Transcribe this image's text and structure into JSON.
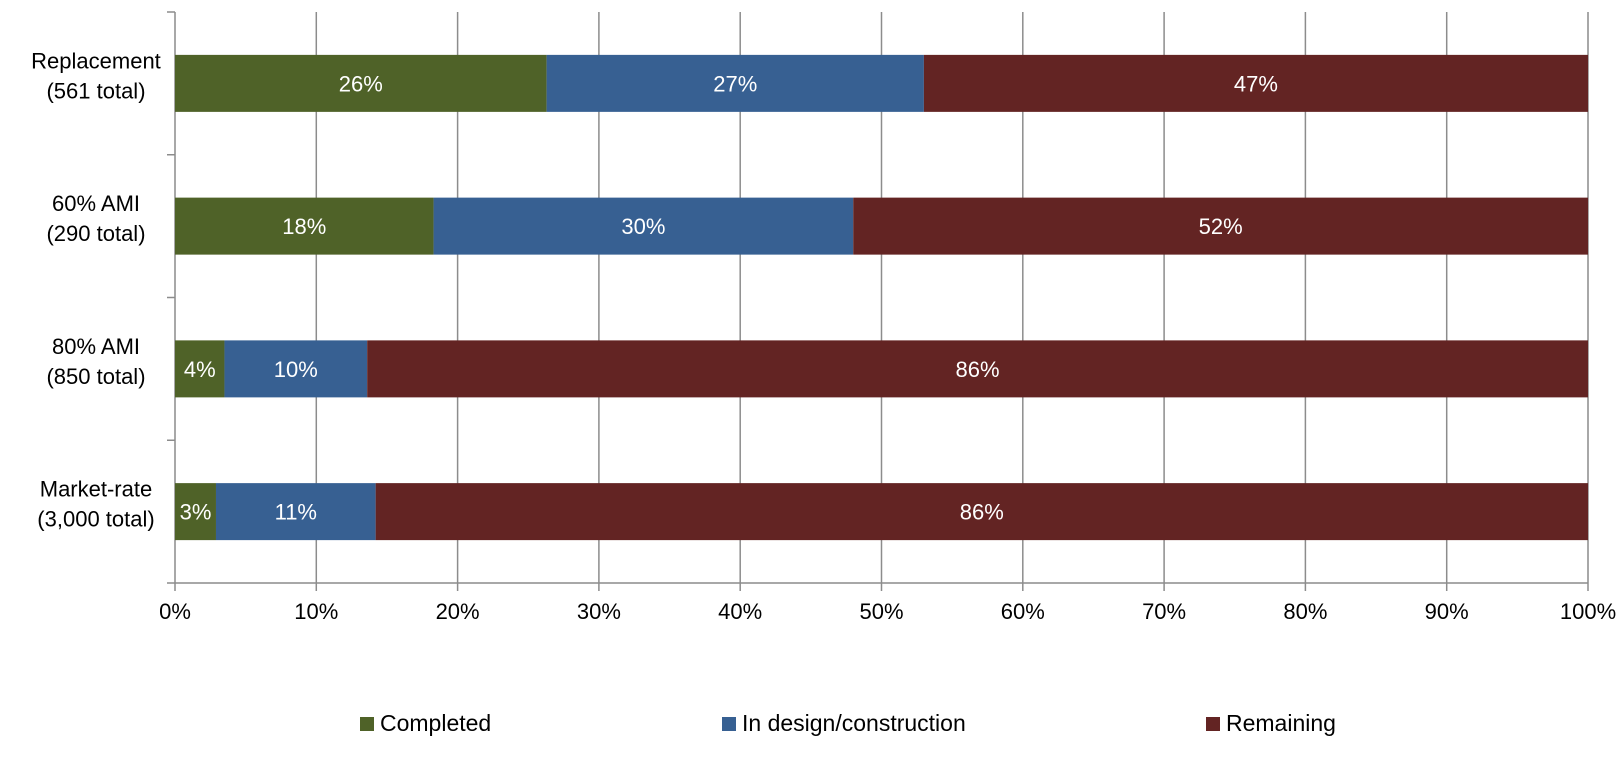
{
  "chart_data": {
    "type": "bar",
    "orientation": "horizontal",
    "stacked": true,
    "categories": [
      [
        "Replacement",
        "(561 total)"
      ],
      [
        "60% AMI",
        "(290 total)"
      ],
      [
        "80% AMI",
        "(850 total)"
      ],
      [
        "Market-rate",
        "(3,000 total)"
      ]
    ],
    "series": [
      {
        "name": "Completed",
        "color": "#4F6228",
        "values": [
          26.3,
          18.3,
          3.5,
          2.9
        ],
        "labels": [
          "26%",
          "18%",
          "4%",
          "3%"
        ]
      },
      {
        "name": "In design/construction",
        "color": "#376092",
        "values": [
          26.7,
          29.7,
          10.1,
          11.3
        ],
        "labels": [
          "27%",
          "30%",
          "10%",
          "11%"
        ]
      },
      {
        "name": "Remaining",
        "color": "#632423",
        "values": [
          47.0,
          52.0,
          86.4,
          85.8
        ],
        "labels": [
          "47%",
          "52%",
          "86%",
          "86%"
        ]
      }
    ],
    "xlim": [
      0,
      100
    ],
    "xticks": [
      "0%",
      "10%",
      "20%",
      "30%",
      "40%",
      "50%",
      "60%",
      "70%",
      "80%",
      "90%",
      "100%"
    ],
    "grid": true,
    "legend_position": "bottom"
  }
}
